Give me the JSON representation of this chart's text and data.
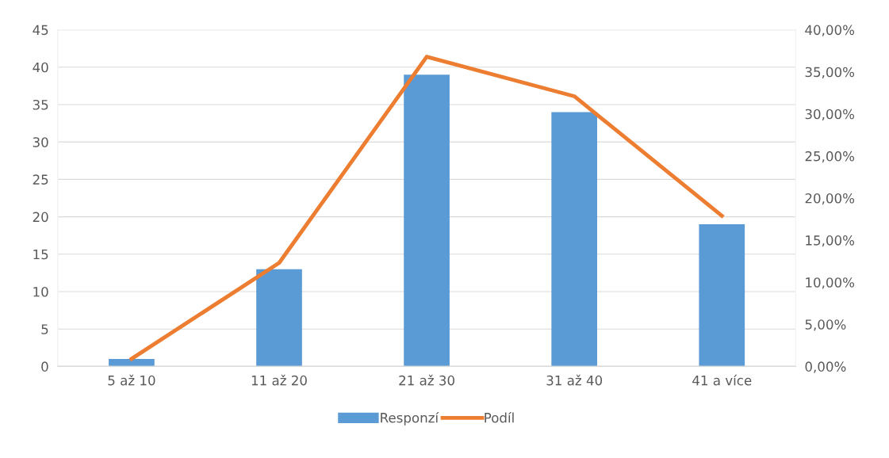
{
  "chart_data": {
    "type": "bar",
    "categories": [
      "5 až 10",
      "11 až 20",
      "21 až 30",
      "31 až 40",
      "41 a více"
    ],
    "series": [
      {
        "name": "Responzí",
        "color": "#5b9bd5",
        "values": [
          1,
          13,
          39,
          34,
          19
        ]
      },
      {
        "name": "Podíl",
        "type": "line",
        "axis": "y2",
        "color": "#ed7d31",
        "values": [
          0.9,
          12.3,
          36.8,
          32.1,
          17.9
        ]
      }
    ],
    "ylim": [
      0,
      45
    ],
    "yticks": [
      0,
      5,
      10,
      15,
      20,
      25,
      30,
      35,
      40,
      45
    ],
    "y2lim": [
      0,
      40
    ],
    "y2ticks": [
      {
        "value": 0,
        "label": "0,00%"
      },
      {
        "value": 5,
        "label": "5,00%"
      },
      {
        "value": 10,
        "label": "10,00%"
      },
      {
        "value": 15,
        "label": "15,00%"
      },
      {
        "value": 20,
        "label": "20,00%"
      },
      {
        "value": 25,
        "label": "25,00%"
      },
      {
        "value": 30,
        "label": "30,00%"
      },
      {
        "value": 35,
        "label": "35,00%"
      },
      {
        "value": 40,
        "label": "40,00%"
      }
    ],
    "grid": "y",
    "legend": "bottom",
    "marker": "none",
    "line_style": "solid"
  }
}
